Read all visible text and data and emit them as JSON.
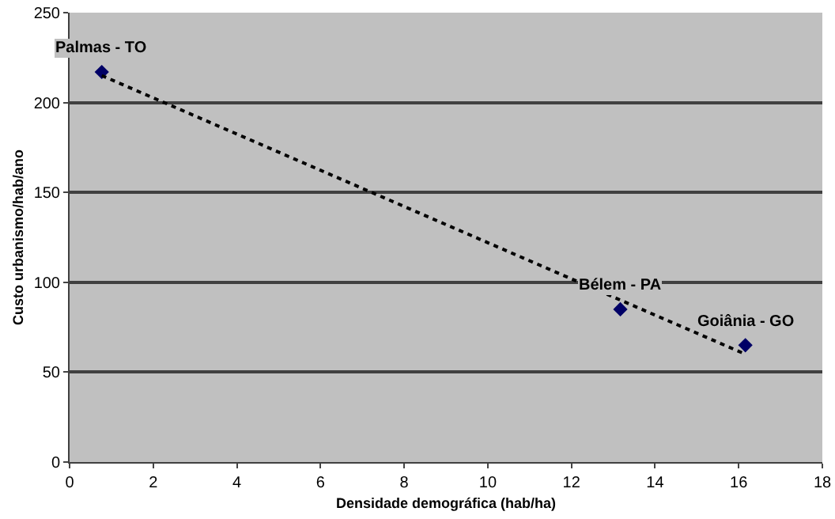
{
  "chart_data": {
    "type": "scatter",
    "xlabel": "Densidade demográfica (hab/ha)",
    "ylabel": "Custo urbanismo/hab/ano",
    "x": [
      0.77,
      13.17,
      16.16
    ],
    "series": [
      {
        "color": "#000066",
        "values": [
          217,
          85,
          65
        ],
        "marker": "diamond"
      },
      {
        "type": "line",
        "color": "#000000",
        "x": [
          0.77,
          16.16
        ],
        "values": [
          215,
          60
        ],
        "line_style": "dotted",
        "marker": "none"
      }
    ],
    "annotations": [
      {
        "text": "Palmas - TO",
        "x": 0.77,
        "y": 217
      },
      {
        "text": "Bélem - PA",
        "x": 13.17,
        "y": 85
      },
      {
        "text": "Goiânia - GO",
        "x": 16.16,
        "y": 65
      }
    ],
    "xlim": [
      0,
      18
    ],
    "xticks": [
      0,
      2,
      4,
      6,
      8,
      10,
      12,
      14,
      16,
      18
    ],
    "ylim": [
      0,
      250
    ],
    "yticks": [
      0,
      50,
      100,
      150,
      200,
      250
    ],
    "grid": "y"
  }
}
